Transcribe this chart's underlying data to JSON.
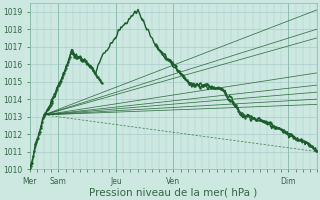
{
  "bg_color": "#cce8e0",
  "grid_color": "#aacccc",
  "line_color": "#1a5c2a",
  "xlabel": "Pression niveau de la mer( hPa )",
  "ylim": [
    1010,
    1019.5
  ],
  "yticks": [
    1010,
    1011,
    1012,
    1013,
    1014,
    1015,
    1016,
    1017,
    1018,
    1019
  ],
  "xtick_labels": [
    "Mer",
    "Sam",
    "Jeu",
    "Ven",
    "Dim"
  ],
  "xtick_positions": [
    0,
    24,
    72,
    120,
    216
  ],
  "tick_fontsize": 5.5,
  "xlabel_fontsize": 7.5,
  "fan_origin_x": 12,
  "fan_origin_y": 1013.1,
  "fan_endpoints": [
    [
      240,
      1019.1
    ],
    [
      240,
      1018.0
    ],
    [
      240,
      1017.5
    ],
    [
      240,
      1015.5
    ],
    [
      240,
      1014.8
    ],
    [
      240,
      1014.4
    ],
    [
      240,
      1014.0
    ],
    [
      240,
      1013.7
    ]
  ],
  "fan_dashed_endpoint": [
    240,
    1011.0
  ],
  "xlim": [
    0,
    240
  ]
}
